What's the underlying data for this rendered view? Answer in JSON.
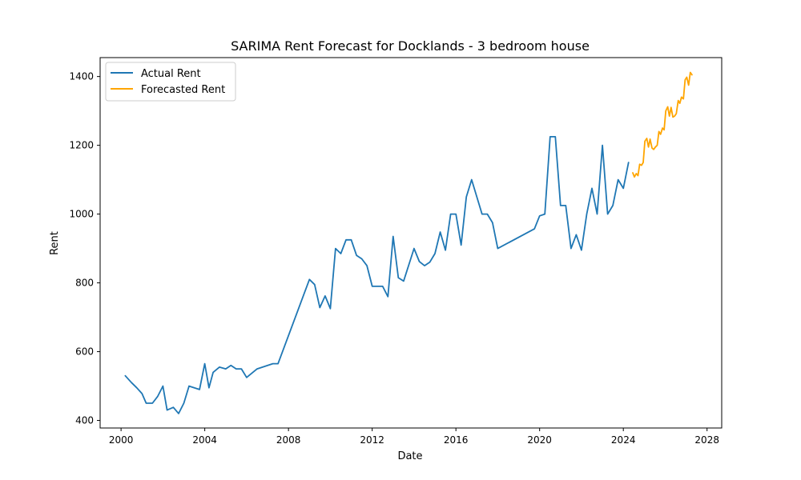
{
  "chart_data": {
    "type": "line",
    "title": "SARIMA Rent Forecast for Docklands - 3 bedroom house",
    "xlabel": "Date",
    "ylabel": "Rent",
    "xlim": [
      1999.0,
      2028.7
    ],
    "ylim": [
      378,
      1455
    ],
    "x_ticks": [
      2000,
      2004,
      2008,
      2012,
      2016,
      2020,
      2024,
      2028
    ],
    "y_ticks": [
      400,
      600,
      800,
      1000,
      1200,
      1400
    ],
    "grid": false,
    "legend_position": "upper-left",
    "series": [
      {
        "name": "Actual Rent",
        "color": "#1f77b4",
        "x": [
          2000.2,
          2000.5,
          2000.75,
          2001.0,
          2001.2,
          2001.5,
          2001.75,
          2002.0,
          2002.2,
          2002.5,
          2002.75,
          2003.0,
          2003.25,
          2003.75,
          2004.0,
          2004.2,
          2004.4,
          2004.7,
          2005.0,
          2005.25,
          2005.5,
          2005.75,
          2006.0,
          2006.5,
          2007.25,
          2007.5,
          2009.0,
          2009.25,
          2009.5,
          2009.75,
          2010.0,
          2010.25,
          2010.5,
          2010.75,
          2011.0,
          2011.25,
          2011.5,
          2011.75,
          2012.0,
          2012.5,
          2012.75,
          2013.0,
          2013.25,
          2013.5,
          2014.0,
          2014.25,
          2014.5,
          2014.75,
          2015.0,
          2015.25,
          2015.5,
          2015.75,
          2016.0,
          2016.25,
          2016.5,
          2016.75,
          2017.0,
          2017.25,
          2017.5,
          2017.75,
          2018.0,
          2019.75,
          2020.0,
          2020.25,
          2020.5,
          2020.75,
          2021.0,
          2021.25,
          2021.5,
          2021.75,
          2022.0,
          2022.25,
          2022.5,
          2022.75,
          2023.0,
          2023.25,
          2023.5,
          2023.75,
          2024.0,
          2024.25
        ],
        "values": [
          530,
          510,
          495,
          478,
          450,
          450,
          470,
          500,
          430,
          438,
          420,
          450,
          500,
          490,
          565,
          495,
          540,
          555,
          550,
          560,
          550,
          550,
          525,
          550,
          565,
          565,
          810,
          795,
          728,
          762,
          725,
          900,
          885,
          925,
          925,
          880,
          870,
          850,
          790,
          790,
          760,
          935,
          815,
          805,
          900,
          862,
          850,
          860,
          885,
          948,
          895,
          1000,
          1000,
          910,
          1050,
          1100,
          1050,
          1000,
          1000,
          975,
          900,
          957,
          995,
          1000,
          1225,
          1225,
          1025,
          1025,
          900,
          940,
          895,
          1000,
          1075,
          1000,
          1200,
          1000,
          1025,
          1100,
          1075,
          1150
        ]
      },
      {
        "name": "Forecasted Rent",
        "color": "#ffa500",
        "x": [
          2024.45,
          2024.53,
          2024.62,
          2024.7,
          2024.78,
          2024.87,
          2024.95,
          2025.03,
          2025.12,
          2025.2,
          2025.28,
          2025.37,
          2025.45,
          2025.53,
          2025.62,
          2025.7,
          2025.78,
          2025.87,
          2025.95,
          2026.03,
          2026.12,
          2026.2,
          2026.28,
          2026.37,
          2026.45,
          2026.53,
          2026.62,
          2026.7,
          2026.78,
          2026.87,
          2026.95,
          2027.03,
          2027.12,
          2027.2,
          2027.28
        ],
        "values": [
          1120,
          1108,
          1118,
          1112,
          1145,
          1142,
          1150,
          1212,
          1220,
          1195,
          1218,
          1192,
          1188,
          1195,
          1200,
          1240,
          1232,
          1250,
          1245,
          1300,
          1312,
          1285,
          1310,
          1282,
          1285,
          1292,
          1330,
          1322,
          1340,
          1335,
          1390,
          1398,
          1375,
          1412,
          1405
        ]
      }
    ]
  }
}
